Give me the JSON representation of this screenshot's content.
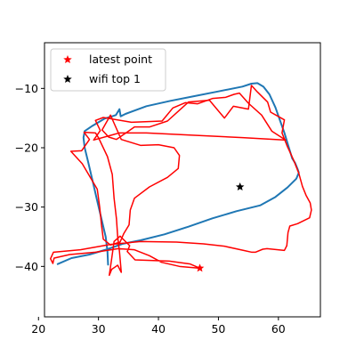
{
  "chart_data": {
    "type": "line",
    "title": "",
    "xlabel": "",
    "ylabel": "",
    "xlim": [
      21,
      67
    ],
    "ylim": [
      -48.5,
      -2.3
    ],
    "xticks": [
      20,
      30,
      40,
      50,
      60
    ],
    "yticks": [
      -40,
      -30,
      -20,
      -10
    ],
    "grid": false,
    "legend": {
      "placement": "top-left",
      "entries": [
        {
          "label": "latest point",
          "marker": "star",
          "color": "#ff0000"
        },
        {
          "label": "wifi top 1",
          "marker": "star",
          "color": "#000000"
        }
      ]
    },
    "series": [
      {
        "style": "line",
        "color": "#1f77b4",
        "points": [
          [
            23.2,
            -39.6
          ],
          [
            25.5,
            -38.6
          ],
          [
            28.5,
            -38.0
          ],
          [
            31.5,
            -37.1
          ],
          [
            34.0,
            -36.2
          ],
          [
            37.0,
            -35.6
          ],
          [
            41.0,
            -34.6
          ],
          [
            45.0,
            -33.3
          ],
          [
            49.0,
            -31.9
          ],
          [
            53.0,
            -30.7
          ],
          [
            57.0,
            -29.7
          ],
          [
            59.5,
            -28.3
          ],
          [
            61.5,
            -26.7
          ],
          [
            63.0,
            -25.2
          ],
          [
            63.4,
            -24.2
          ],
          [
            63.2,
            -23.6
          ],
          [
            62.8,
            -22.6
          ],
          [
            62.3,
            -21.8
          ],
          [
            61.6,
            -19.5
          ],
          [
            61.0,
            -17.5
          ],
          [
            60.3,
            -15.5
          ],
          [
            59.5,
            -13.2
          ],
          [
            58.5,
            -11.0
          ],
          [
            57.5,
            -9.7
          ],
          [
            56.5,
            -9.1
          ],
          [
            55.5,
            -9.2
          ],
          [
            54.0,
            -9.7
          ],
          [
            50.0,
            -10.5
          ],
          [
            46.0,
            -11.3
          ],
          [
            42.0,
            -12.1
          ],
          [
            38.0,
            -13.0
          ],
          [
            34.5,
            -14.3
          ],
          [
            33.7,
            -14.7
          ],
          [
            33.5,
            -13.5
          ],
          [
            32.9,
            -14.5
          ],
          [
            31.0,
            -15.1
          ],
          [
            29.0,
            -16.3
          ],
          [
            27.7,
            -17.2
          ],
          [
            27.5,
            -18.3
          ],
          [
            27.7,
            -20.0
          ],
          [
            28.3,
            -22.5
          ],
          [
            29.0,
            -25.5
          ],
          [
            29.8,
            -29.0
          ],
          [
            30.5,
            -32.0
          ],
          [
            31.2,
            -35.0
          ],
          [
            31.5,
            -37.5
          ],
          [
            31.6,
            -39.7
          ]
        ]
      },
      {
        "style": "line",
        "color": "#ff0000",
        "points": [
          [
            46.9,
            -40.3
          ],
          [
            43.5,
            -40.0
          ],
          [
            40.5,
            -39.3
          ],
          [
            38.5,
            -38.2
          ],
          [
            36.0,
            -37.2
          ],
          [
            33.3,
            -37.0
          ],
          [
            29.5,
            -37.6
          ],
          [
            25.2,
            -38.0
          ],
          [
            22.6,
            -38.6
          ],
          [
            22.4,
            -39.5
          ],
          [
            22.0,
            -38.7
          ],
          [
            22.5,
            -37.6
          ],
          [
            27.0,
            -37.2
          ],
          [
            32.0,
            -36.3
          ],
          [
            37.0,
            -35.8
          ],
          [
            43.0,
            -35.9
          ],
          [
            47.5,
            -36.2
          ],
          [
            51.0,
            -36.6
          ],
          [
            54.2,
            -37.3
          ],
          [
            55.5,
            -37.6
          ],
          [
            56.2,
            -37.6
          ],
          [
            57.4,
            -37.1
          ],
          [
            58.1,
            -37.0
          ],
          [
            61.0,
            -37.3
          ],
          [
            61.4,
            -36.5
          ],
          [
            61.6,
            -34.3
          ],
          [
            61.9,
            -33.2
          ],
          [
            63.2,
            -32.8
          ],
          [
            65.2,
            -31.8
          ],
          [
            65.5,
            -30.5
          ],
          [
            65.3,
            -29.3
          ],
          [
            64.6,
            -28.0
          ],
          [
            64.0,
            -26.5
          ],
          [
            63.4,
            -24.3
          ],
          [
            62.5,
            -22.0
          ],
          [
            61.5,
            -19.8
          ],
          [
            60.6,
            -17.5
          ],
          [
            61.0,
            -15.3
          ],
          [
            58.7,
            -14.0
          ],
          [
            58.2,
            -12.3
          ],
          [
            56.5,
            -10.6
          ],
          [
            55.5,
            -9.5
          ],
          [
            55.0,
            -13.5
          ],
          [
            52.5,
            -13.0
          ],
          [
            51.0,
            -15.0
          ],
          [
            48.5,
            -12.0
          ],
          [
            45.0,
            -12.3
          ],
          [
            41.5,
            -15.5
          ],
          [
            38.5,
            -16.5
          ],
          [
            36.0,
            -16.5
          ],
          [
            35.0,
            -17.2
          ],
          [
            33.0,
            -18.6
          ],
          [
            31.7,
            -18.2
          ],
          [
            30.6,
            -17.0
          ],
          [
            32.0,
            -14.5
          ],
          [
            33.8,
            -18.6
          ],
          [
            37.0,
            -19.6
          ],
          [
            40.0,
            -19.5
          ],
          [
            42.6,
            -20.0
          ],
          [
            43.5,
            -21.3
          ],
          [
            43.3,
            -23.5
          ],
          [
            41.5,
            -25.0
          ],
          [
            38.5,
            -26.6
          ],
          [
            36.0,
            -28.5
          ],
          [
            35.3,
            -30.5
          ],
          [
            35.1,
            -33.0
          ],
          [
            34.2,
            -34.5
          ],
          [
            33.6,
            -35.9
          ],
          [
            32.0,
            -36.4
          ],
          [
            30.8,
            -35.4
          ],
          [
            30.5,
            -33.0
          ],
          [
            30.2,
            -30.0
          ],
          [
            29.8,
            -27.0
          ],
          [
            27.3,
            -22.7
          ],
          [
            25.4,
            -20.6
          ],
          [
            27.2,
            -20.5
          ],
          [
            28.5,
            -18.6
          ],
          [
            27.6,
            -17.4
          ],
          [
            29.5,
            -17.5
          ],
          [
            30.0,
            -18.3
          ],
          [
            31.5,
            -21.5
          ],
          [
            32.3,
            -24.5
          ],
          [
            32.6,
            -28.5
          ],
          [
            33.0,
            -32.0
          ],
          [
            33.2,
            -35.0
          ],
          [
            33.5,
            -37.5
          ],
          [
            33.8,
            -41.0
          ],
          [
            33.2,
            -39.8
          ],
          [
            32.2,
            -40.5
          ],
          [
            31.8,
            -41.5
          ],
          [
            32.2,
            -38.7
          ],
          [
            32.6,
            -35.8
          ],
          [
            33.6,
            -34.9
          ],
          [
            35.2,
            -36.5
          ],
          [
            34.8,
            -37.5
          ],
          [
            36.1,
            -38.9
          ],
          [
            41.8,
            -39.1
          ],
          [
            45.3,
            -39.6
          ],
          [
            46.9,
            -40.3
          ]
        ]
      },
      {
        "style": "line",
        "color": "#ff0000",
        "points": [
          [
            29.2,
            -18.7
          ],
          [
            30.3,
            -17.1
          ],
          [
            29.5,
            -15.4
          ],
          [
            30.8,
            -14.9
          ],
          [
            35.5,
            -15.7
          ],
          [
            40.6,
            -15.5
          ],
          [
            42.4,
            -13.3
          ],
          [
            44.5,
            -12.4
          ],
          [
            46.5,
            -12.6
          ],
          [
            49.0,
            -11.7
          ],
          [
            51.2,
            -11.5
          ],
          [
            52.6,
            -11.0
          ],
          [
            53.5,
            -10.8
          ],
          [
            55.0,
            -12.5
          ],
          [
            57.2,
            -14.5
          ],
          [
            58.9,
            -17.2
          ],
          [
            61.2,
            -18.7
          ],
          [
            54.0,
            -18.3
          ],
          [
            46.0,
            -17.9
          ],
          [
            38.0,
            -17.5
          ],
          [
            33.5,
            -17.5
          ],
          [
            29.2,
            -18.7
          ]
        ]
      }
    ],
    "markers": [
      {
        "label": "latest point",
        "x": 46.9,
        "y": -40.3,
        "color": "#ff0000",
        "marker": "star"
      },
      {
        "label": "wifi top 1",
        "x": 53.6,
        "y": -26.6,
        "color": "#000000",
        "marker": "star"
      }
    ]
  }
}
